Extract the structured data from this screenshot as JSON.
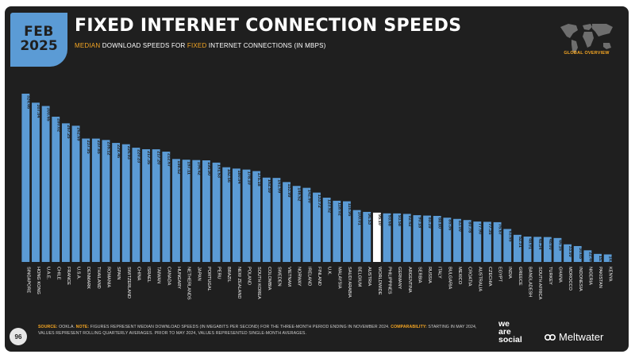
{
  "header": {
    "month": "FEB",
    "year": "2025",
    "title": "FIXED INTERNET CONNECTION SPEEDS",
    "subtitle_part1": "MEDIAN",
    "subtitle_part2": " DOWNLOAD SPEEDS FOR ",
    "subtitle_part3": "FIXED",
    "subtitle_part4": " INTERNET CONNECTIONS (IN MBPS)",
    "map_caption": "GLOBAL OVERVIEW"
  },
  "footer": {
    "page_number": "96",
    "source_label": "SOURCE:",
    "source_text": " OOKLA. ",
    "note_label": "NOTE:",
    "note_text": " FIGURES REPRESENT MEDIAN DOWNLOAD SPEEDS (IN MEGABITS PER SECOND) FOR THE THREE-MONTH PERIOD ENDING IN NOVEMBER 2024. ",
    "comparability_label": "COMPARABILITY:",
    "comparability_text": " STARTING IN MAY 2024, VALUES REPRESENT ROLLING QUARTERLY AVERAGES. PRIOR TO MAY 2024, VALUES REPRESENTED SINGLE-MONTH AVERAGES.",
    "brand_we": "we",
    "brand_are": "are",
    "brand_social": "social",
    "brand_meltwater": "Meltwater"
  },
  "colors": {
    "bar": "#5b9bd5",
    "highlight_bar": "#ffffff",
    "accent": "#f5a623",
    "panel": "#1f1f1f",
    "text": "#ffffff"
  },
  "chart_data": {
    "type": "bar",
    "title": "FIXED INTERNET CONNECTION SPEEDS",
    "categories": [
      "SINGAPORE",
      "HONG KONG",
      "U.A.E.",
      "CHILE",
      "FRANCE",
      "U.S.A.",
      "DENMARK",
      "THAILAND",
      "ROMANIA",
      "SPAIN",
      "SWITZERLAND",
      "CHINA",
      "ISRAEL",
      "TAIWAN",
      "CANADA",
      "HUNGARY",
      "NETHERLANDS",
      "JAPAN",
      "PORTUGAL",
      "PERU",
      "BRAZIL",
      "NEW ZEALAND",
      "POLAND",
      "SOUTH KOREA",
      "COLOMBIA",
      "SWEDEN",
      "VIETNAM",
      "NORWAY",
      "IRELAND",
      "FINLAND",
      "U.K.",
      "MALAYSIA",
      "SAUDI ARABIA",
      "BELGIUM",
      "AUSTRIA",
      "WORLDWIDE",
      "PHILIPPINES",
      "GERMANY",
      "ARGENTINA",
      "SERBIA",
      "RUSSIA",
      "ITALY",
      "BULGARIA",
      "MEXICO",
      "CROATIA",
      "AUSTRALIA",
      "CZECHIA",
      "EGYPT",
      "INDIA",
      "GREECE",
      "BANGLADESH",
      "SOUTH AFRICA",
      "TURKEY",
      "GHANA",
      "MOROCCO",
      "INDONESIA",
      "NIGERIA",
      "PAKISTAN",
      "KENYA"
    ],
    "values": [
      324.46,
      307.04,
      300.65,
      280.02,
      267.25,
      262.59,
      237.95,
      237.85,
      235.12,
      229.46,
      226.93,
      220.23,
      217.35,
      217.2,
      212.67,
      198.52,
      197.11,
      196.42,
      195.9,
      191.53,
      182.56,
      180.04,
      178.1,
      175.18,
      162.59,
      161.99,
      153.99,
      146.52,
      142.9,
      133.72,
      123.92,
      118.02,
      116.96,
      100.01,
      96.53,
      95.1,
      93.68,
      93.58,
      92.62,
      90.18,
      89.39,
      88.8,
      85.36,
      83.0,
      80.78,
      77.9,
      77.35,
      76.67,
      63.55,
      52.31,
      48.91,
      48.34,
      48.0,
      46.16,
      33.99,
      30.65,
      22.44,
      15.53,
      14.54
    ],
    "labels": [
      "324.46",
      "307.04",
      "300.65",
      "280.02",
      "267.25",
      "262.59",
      "237.95",
      "237.85",
      "235.12",
      "229.46",
      "226.93",
      "220.23",
      "217.35",
      "217.20",
      "212.67",
      "198.52",
      "197.11",
      "196.42",
      "195.90",
      "191.53",
      "182.56",
      "180.04",
      "178.10",
      "175.18",
      "162.59",
      "161.99",
      "153.99",
      "146.52",
      "142.90",
      "133.72",
      "123.92",
      "118.02",
      "116.96",
      "100.01",
      "96.53",
      "95.10",
      "93.68",
      "93.58",
      "92.62",
      "90.18",
      "89.39",
      "88.80",
      "85.36",
      "83.00",
      "80.78",
      "77.90",
      "77.35",
      "76.67",
      "63.55",
      "52.31",
      "48.91",
      "48.34",
      "48.00",
      "46.16",
      "33.99",
      "30.65",
      "22.44",
      "15.53",
      "14.54"
    ],
    "highlight": "WORLDWIDE",
    "ylim": [
      0,
      330
    ],
    "grid": false,
    "legend": "none"
  }
}
